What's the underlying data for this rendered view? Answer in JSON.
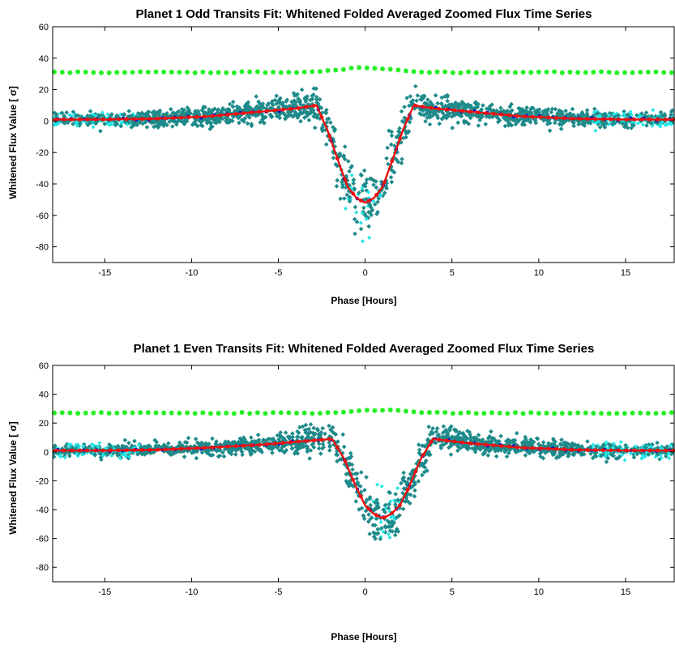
{
  "chart_data": [
    {
      "type": "scatter",
      "title": "Planet 1 Odd Transits Fit: Whitened Folded Averaged Zoomed Flux Time Series",
      "xlabel": "Phase [Hours]",
      "ylabel": "Whitened Flux Value [ σ]",
      "xlim": [
        -18,
        17.8
      ],
      "ylim": [
        -90,
        60
      ],
      "xticks": [
        -15,
        -10,
        -5,
        0,
        5,
        10,
        15
      ],
      "yticks": [
        -80,
        -60,
        -40,
        -20,
        0,
        20,
        40,
        60
      ],
      "grid": false,
      "legend": "none",
      "series_colors": {
        "data": "#1e8a8a",
        "outside": "#22e6e6",
        "residual": "#22ee22",
        "fit": "#ee1111",
        "binned": "#1111cc"
      },
      "transit": {
        "center": 0.0,
        "depth": -52,
        "half_width": 2.8,
        "shoulder": 10,
        "scatter_in": 12,
        "residual_level": 31,
        "residual_bump": 3
      },
      "fit_line": {
        "x": [
          -18,
          -15,
          -12,
          -9,
          -6,
          -4,
          -2.8,
          -2.2,
          -1.5,
          -1,
          -0.5,
          0,
          0.5,
          1,
          1.5,
          2.2,
          2.8,
          4,
          6,
          9,
          12,
          15,
          17.8
        ],
        "y": [
          1,
          1,
          1.5,
          3,
          6,
          8,
          10,
          -5,
          -27,
          -42,
          -49,
          -52,
          -49,
          -42,
          -27,
          -5,
          10,
          8,
          6,
          3,
          1.5,
          1,
          1
        ]
      }
    },
    {
      "type": "scatter",
      "title": "Planet 1 Even Transits Fit: Whitened Folded Averaged Zoomed Flux Time Series",
      "xlabel": "Phase [Hours]",
      "ylabel": "Whitened Flux Value [ σ]",
      "xlim": [
        -18,
        17.8
      ],
      "ylim": [
        -90,
        60
      ],
      "xticks": [
        -15,
        -10,
        -5,
        0,
        5,
        10,
        15
      ],
      "yticks": [
        -80,
        -60,
        -40,
        -20,
        0,
        20,
        40,
        60
      ],
      "grid": false,
      "legend": "none",
      "series_colors": {
        "data": "#1e8a8a",
        "outside": "#22e6e6",
        "residual": "#22ee22",
        "fit": "#ee1111",
        "binned": "#1111cc"
      },
      "transit": {
        "center": 1.0,
        "depth": -46,
        "half_width": 2.9,
        "shoulder": 9,
        "scatter_in": 10,
        "residual_level": 27,
        "residual_bump": 2
      },
      "fit_line": {
        "x": [
          -18,
          -15,
          -12,
          -9,
          -6,
          -3,
          -1.9,
          -1.2,
          -0.5,
          0,
          0.5,
          1,
          1.5,
          2,
          2.5,
          3.2,
          3.9,
          6,
          9,
          12,
          15,
          17.8
        ],
        "y": [
          1,
          1,
          1.5,
          3,
          5,
          8,
          9,
          -5,
          -25,
          -37,
          -43,
          -46,
          -43,
          -37,
          -25,
          -5,
          9,
          6,
          3,
          1.5,
          1,
          1
        ]
      }
    }
  ]
}
